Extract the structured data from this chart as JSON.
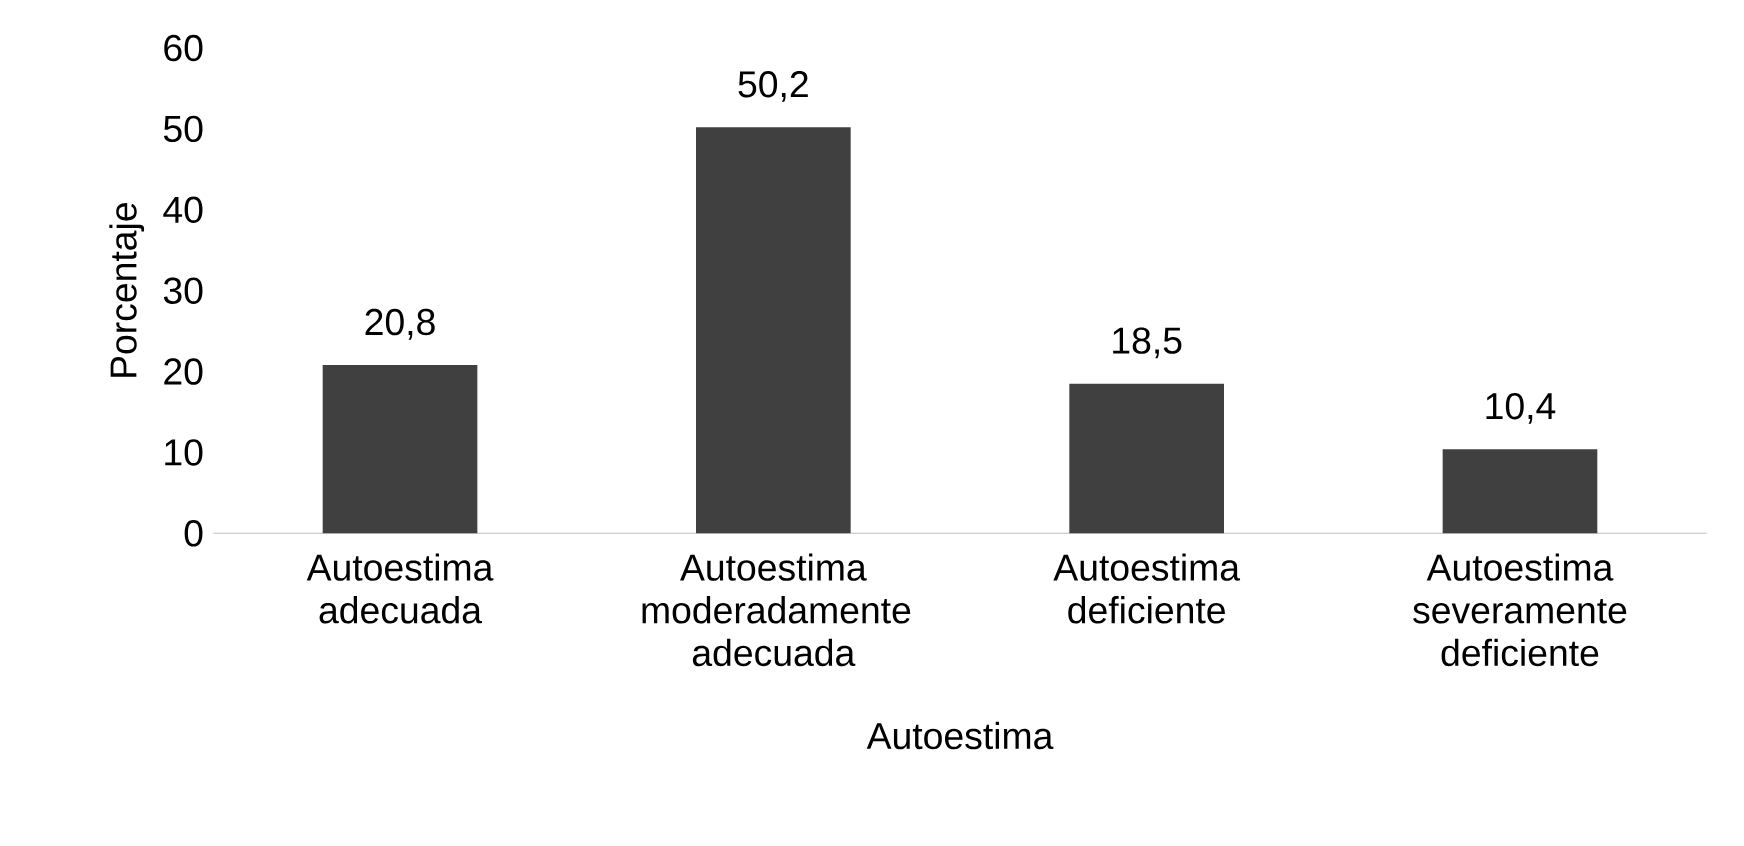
{
  "chart_data": {
    "type": "bar",
    "xlabel": "Autoestima",
    "ylabel": "Porcentaje",
    "categories": [
      "Autoestima adecuada",
      "Autoestima moderadamente adecuada",
      "Autoestima deficiente",
      "Autoestima severamente deficiente"
    ],
    "values": [
      20.8,
      50.2,
      18.5,
      10.4
    ],
    "value_labels": [
      "20,8",
      "50,2",
      "18,5",
      "10,4"
    ],
    "color": "#404040",
    "ylim": [
      0,
      60
    ],
    "yticks": [
      0,
      10,
      20,
      30,
      40,
      50,
      60
    ]
  }
}
